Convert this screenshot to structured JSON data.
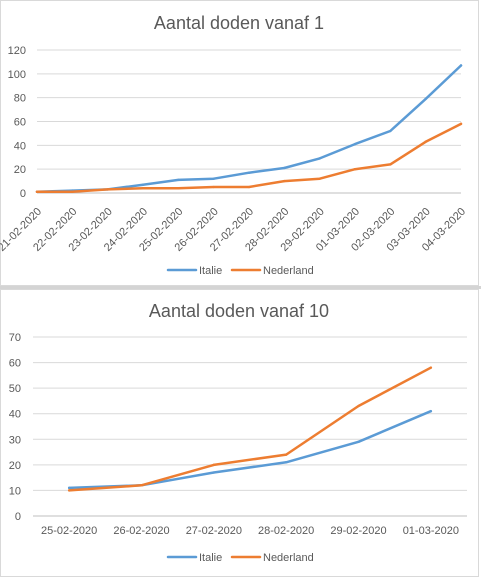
{
  "chart_data": [
    {
      "type": "line",
      "title": "Aantal doden vanaf 1",
      "categories": [
        "21-02-2020",
        "22-02-2020",
        "23-02-2020",
        "24-02-2020",
        "25-02-2020",
        "26-02-2020",
        "27-02-2020",
        "28-02-2020",
        "29-02-2020",
        "01-03-2020",
        "02-03-2020",
        "03-03-2020",
        "04-03-2020"
      ],
      "ylim": [
        0,
        120
      ],
      "yticks": [
        0,
        20,
        40,
        60,
        80,
        100,
        120
      ],
      "grid": true,
      "legend_position": "bottom",
      "series": [
        {
          "name": "Italie",
          "color": "#5b9bd5",
          "values": [
            1,
            2,
            3,
            7,
            11,
            12,
            17,
            21,
            29,
            41,
            52,
            79,
            107
          ]
        },
        {
          "name": "Nederland",
          "color": "#ed7d31",
          "values": [
            1,
            1,
            3,
            4,
            4,
            5,
            5,
            10,
            12,
            20,
            24,
            43,
            58
          ]
        }
      ]
    },
    {
      "type": "line",
      "title": "Aantal doden vanaf 10",
      "categories": [
        "25-02-2020",
        "26-02-2020",
        "27-02-2020",
        "28-02-2020",
        "29-02-2020",
        "01-03-2020"
      ],
      "ylim": [
        0,
        70
      ],
      "yticks": [
        0,
        10,
        20,
        30,
        40,
        50,
        60,
        70
      ],
      "grid": true,
      "legend_position": "bottom",
      "series": [
        {
          "name": "Italie",
          "color": "#5b9bd5",
          "values": [
            11,
            12,
            17,
            21,
            29,
            41
          ]
        },
        {
          "name": "Nederland",
          "color": "#ed7d31",
          "values": [
            10,
            12,
            20,
            24,
            43,
            58
          ]
        }
      ]
    }
  ]
}
